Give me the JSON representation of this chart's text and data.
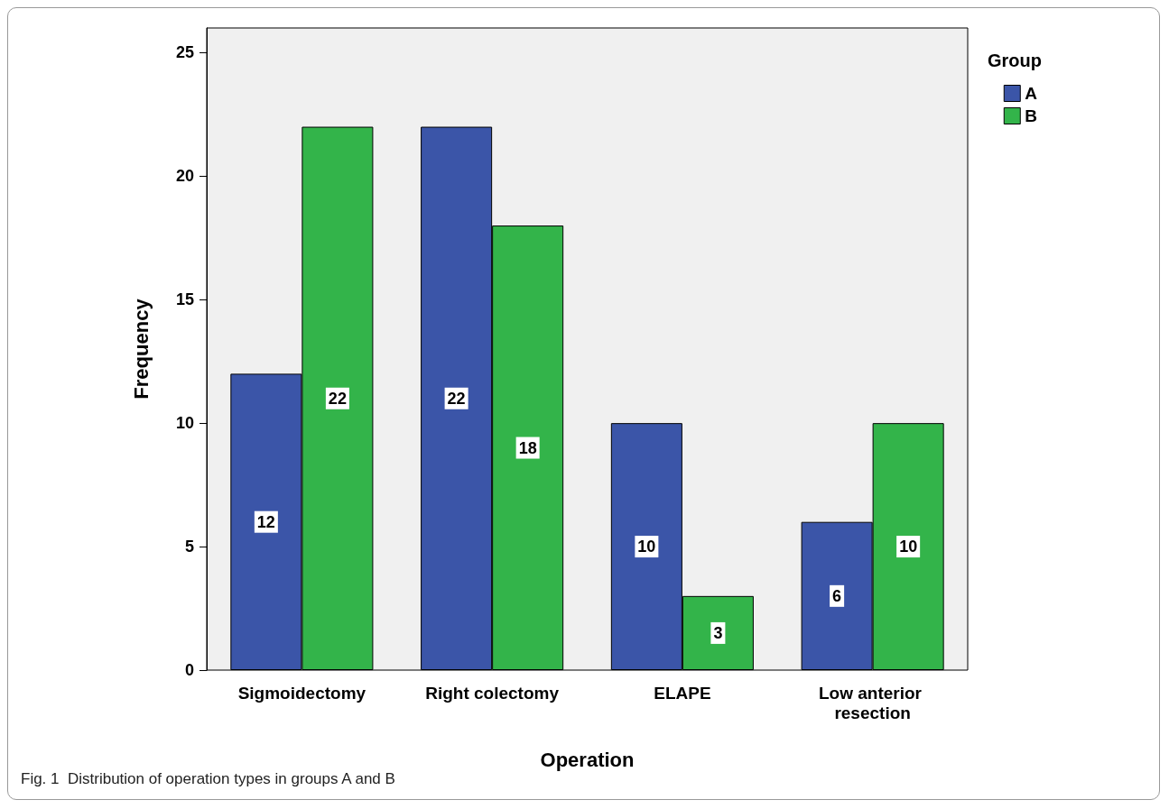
{
  "chart_data": {
    "type": "bar",
    "xlabel": "Operation",
    "ylabel": "Frequency",
    "legend_title": "Group",
    "categories": [
      "Sigmoidectomy",
      "Right colectomy",
      "ELAPE",
      "Low anterior resection"
    ],
    "series": [
      {
        "name": "A",
        "color": "#3b55a8",
        "values": [
          12,
          22,
          10,
          6
        ]
      },
      {
        "name": "B",
        "color": "#33b44a",
        "values": [
          22,
          18,
          3,
          10
        ]
      }
    ],
    "ylim": [
      0,
      26
    ],
    "yticks": [
      0,
      5,
      10,
      15,
      20,
      25
    ],
    "grid": false,
    "legend": "top right",
    "data_labels": true,
    "annotations": [
      "Fig. 1  Distribution of operation types in groups A and B"
    ]
  }
}
